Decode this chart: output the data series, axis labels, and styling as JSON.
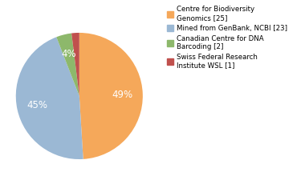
{
  "labels": [
    "Centre for Biodiversity\nGenomics [25]",
    "Mined from GenBank, NCBI [23]",
    "Canadian Centre for DNA\nBarcoding [2]",
    "Swiss Federal Research\nInstitute WSL [1]"
  ],
  "values": [
    25,
    23,
    2,
    1
  ],
  "colors": [
    "#F5A85A",
    "#9BB8D4",
    "#8DB86B",
    "#C0504D"
  ],
  "startangle": 90,
  "background_color": "#ffffff",
  "text_color": "#ffffff",
  "fontsize": 8.5
}
